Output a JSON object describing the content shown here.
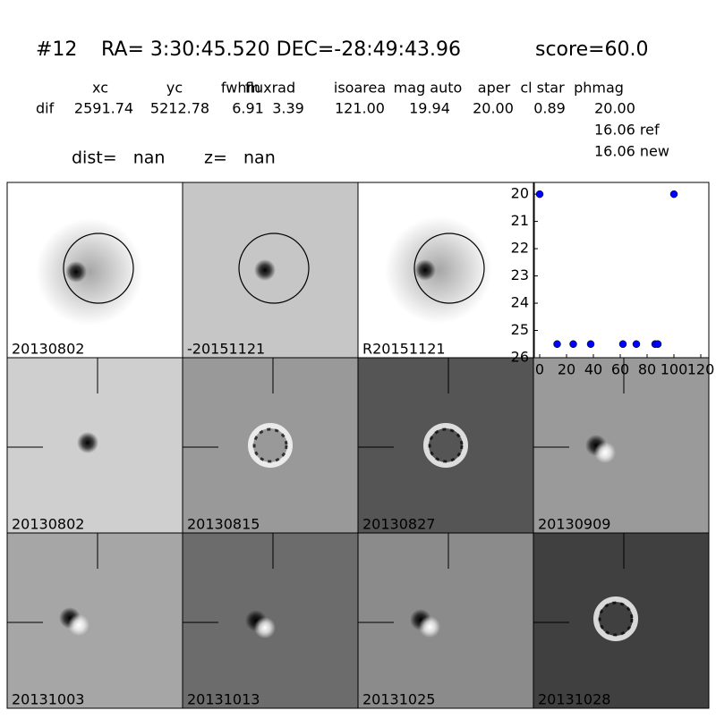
{
  "header": {
    "id": "#12",
    "coords": "RA= 3:30:45.520 DEC=-28:49:43.96",
    "score": "score=60.0",
    "columns": [
      "xc",
      "yc",
      "fwhm",
      "fluxrad",
      "isoarea",
      "mag auto",
      "aper",
      "cl star",
      "phmag"
    ],
    "row_label": "dif",
    "row_values": [
      "2591.74",
      "5212.78",
      "6.91",
      "3.39",
      "121.00",
      "19.94",
      "20.00",
      "0.89",
      "20.00"
    ],
    "extra": [
      "16.06 ref",
      "16.06 new"
    ],
    "dist": "dist=   nan",
    "z": "z=   nan"
  },
  "panels": [
    {
      "label": "20130802"
    },
    {
      "label": "-20151121"
    },
    {
      "label": "R20151121"
    },
    {
      "label": "20130802",
      "color": "#ff0000"
    },
    {
      "label": "20130815"
    },
    {
      "label": "20130827"
    },
    {
      "label": "20130909"
    },
    {
      "label": "20131003"
    },
    {
      "label": "20131013"
    },
    {
      "label": "20131025"
    },
    {
      "label": "20131028"
    }
  ],
  "chart_data": {
    "type": "scatter",
    "x": [
      0,
      13,
      25,
      38,
      62,
      72,
      86,
      88,
      100
    ],
    "y": [
      20,
      25.5,
      25.5,
      25.5,
      25.5,
      25.5,
      25.5,
      25.5,
      20
    ],
    "color": "#0000ff",
    "xlim": [
      -4,
      126
    ],
    "ylim": [
      26,
      19.57
    ],
    "xticks": [
      0,
      20,
      40,
      60,
      80,
      100,
      120
    ],
    "yticks": [
      20,
      21,
      22,
      23,
      24,
      25,
      26
    ]
  }
}
